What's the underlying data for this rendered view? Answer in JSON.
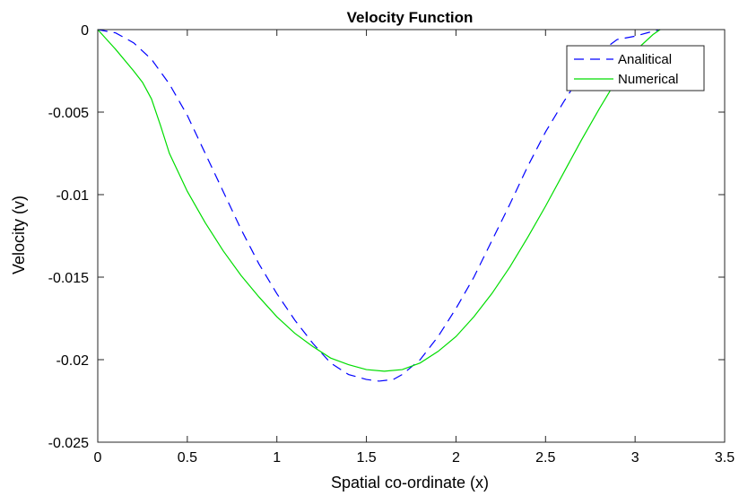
{
  "chart_data": {
    "type": "line",
    "title": "Velocity Function",
    "xlabel": "Spatial co-ordinate (x)",
    "ylabel": "Velocity (v)",
    "xlim": [
      0,
      3.5
    ],
    "ylim": [
      -0.025,
      0
    ],
    "xticks": [
      0,
      0.5,
      1,
      1.5,
      2,
      2.5,
      3,
      3.5
    ],
    "xtick_labels": [
      "0",
      "0.5",
      "1",
      "1.5",
      "2",
      "2.5",
      "3",
      "3.5"
    ],
    "yticks": [
      -0.025,
      -0.02,
      -0.015,
      -0.01,
      -0.005,
      0
    ],
    "ytick_labels": [
      "-0.025",
      "-0.02",
      "-0.015",
      "-0.01",
      "-0.005",
      "0"
    ],
    "grid": false,
    "legend_position": "top-right",
    "series": [
      {
        "name": "Analitical",
        "color": "#0000ff",
        "style": "dashed",
        "x": [
          0,
          0.1,
          0.2,
          0.3,
          0.4,
          0.5,
          0.6,
          0.7,
          0.8,
          0.9,
          1.0,
          1.1,
          1.2,
          1.3,
          1.4,
          1.5,
          1.57,
          1.65,
          1.7,
          1.8,
          1.9,
          2.0,
          2.1,
          2.2,
          2.3,
          2.4,
          2.5,
          2.6,
          2.7,
          2.8,
          2.9,
          3.0,
          3.1,
          3.14
        ],
        "y": [
          0,
          -0.0002,
          -0.0008,
          -0.0018,
          -0.0033,
          -0.0052,
          -0.0075,
          -0.0098,
          -0.0121,
          -0.0142,
          -0.016,
          -0.0176,
          -0.019,
          -0.0202,
          -0.0209,
          -0.0212,
          -0.0213,
          -0.0212,
          -0.0209,
          -0.02,
          -0.0186,
          -0.0169,
          -0.015,
          -0.0128,
          -0.0106,
          -0.0083,
          -0.0062,
          -0.0044,
          -0.0027,
          -0.0014,
          -0.0006,
          -0.0004,
          -0.0001,
          0
        ]
      },
      {
        "name": "Numerical",
        "color": "#00dd00",
        "style": "solid",
        "x": [
          0,
          0.1,
          0.2,
          0.25,
          0.3,
          0.35,
          0.4,
          0.5,
          0.6,
          0.7,
          0.8,
          0.9,
          1.0,
          1.1,
          1.2,
          1.3,
          1.4,
          1.5,
          1.6,
          1.7,
          1.8,
          1.9,
          2.0,
          2.1,
          2.2,
          2.3,
          2.4,
          2.5,
          2.6,
          2.7,
          2.8,
          2.9,
          3.0,
          3.1,
          3.14
        ],
        "y": [
          0,
          -0.0012,
          -0.0025,
          -0.0032,
          -0.0042,
          -0.0058,
          -0.0075,
          -0.0098,
          -0.0117,
          -0.0134,
          -0.0149,
          -0.0162,
          -0.0174,
          -0.0184,
          -0.0192,
          -0.0199,
          -0.0203,
          -0.0206,
          -0.0207,
          -0.0206,
          -0.0202,
          -0.0195,
          -0.0186,
          -0.0174,
          -0.016,
          -0.0144,
          -0.0126,
          -0.0107,
          -0.0087,
          -0.0067,
          -0.0048,
          -0.003,
          -0.0013,
          -0.0003,
          0
        ]
      }
    ]
  }
}
